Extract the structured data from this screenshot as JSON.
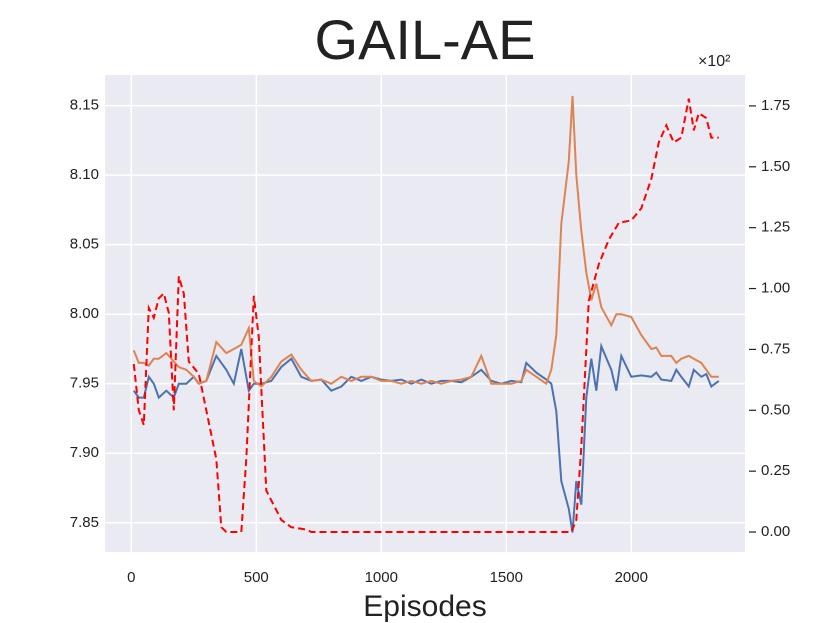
{
  "chart_data": {
    "type": "line",
    "title": "GAIL-AE",
    "x_label": "Episodes",
    "y2_offset_label": "×10²",
    "xlim": [
      -105,
      2455
    ],
    "xticks": [
      0,
      500,
      1000,
      1500,
      2000
    ],
    "ylim": [
      7.829,
      8.172
    ],
    "yticks": [
      7.85,
      {
        "value": 7.9,
        "label": "7.90"
      },
      7.95,
      {
        "value": 8.0,
        "label": "8.00"
      },
      8.05,
      {
        "value": 8.1,
        "label": "8.10"
      },
      8.15
    ],
    "y2lim": [
      -0.082,
      1.877
    ],
    "y2ticks": [
      {
        "value": 0,
        "label": "0.00"
      },
      {
        "value": 0.25,
        "label": "0.25"
      },
      {
        "value": 0.5,
        "label": "0.50"
      },
      {
        "value": 0.75,
        "label": "0.75"
      },
      {
        "value": 1,
        "label": "1.00"
      },
      {
        "value": 1.25,
        "label": "1.25"
      },
      {
        "value": 1.5,
        "label": "1.50"
      },
      {
        "value": 1.75,
        "label": "1.75"
      }
    ],
    "grid": true,
    "series": [
      {
        "color": "#4c72b0",
        "dashed": false,
        "x": [
          10,
          30,
          50,
          70,
          90,
          110,
          140,
          170,
          190,
          220,
          250,
          270,
          300,
          340,
          380,
          410,
          440,
          470,
          490,
          520,
          560,
          600,
          640,
          680,
          720,
          760,
          800,
          840,
          880,
          920,
          960,
          1000,
          1040,
          1080,
          1120,
          1160,
          1200,
          1240,
          1280,
          1320,
          1360,
          1400,
          1440,
          1480,
          1520,
          1560,
          1580,
          1620,
          1660,
          1680,
          1700,
          1720,
          1750,
          1765,
          1780,
          1800,
          1820,
          1840,
          1860,
          1880,
          1920,
          1940,
          1960,
          2000,
          2040,
          2080,
          2100,
          2120,
          2160,
          2180,
          2200,
          2230,
          2250,
          2280,
          2300,
          2320,
          2350
        ],
        "values": [
          7.945,
          7.94,
          7.94,
          7.955,
          7.95,
          7.94,
          7.945,
          7.94,
          7.95,
          7.95,
          7.955,
          7.95,
          7.952,
          7.97,
          7.96,
          7.95,
          7.975,
          7.945,
          7.95,
          7.95,
          7.952,
          7.962,
          7.968,
          7.955,
          7.952,
          7.953,
          7.945,
          7.948,
          7.955,
          7.952,
          7.955,
          7.953,
          7.952,
          7.953,
          7.95,
          7.953,
          7.95,
          7.952,
          7.952,
          7.951,
          7.955,
          7.96,
          7.952,
          7.95,
          7.952,
          7.951,
          7.965,
          7.958,
          7.953,
          7.95,
          7.93,
          7.88,
          7.86,
          7.843,
          7.88,
          7.863,
          7.94,
          7.968,
          7.945,
          7.977,
          7.96,
          7.945,
          7.97,
          7.955,
          7.956,
          7.955,
          7.958,
          7.953,
          7.952,
          7.96,
          7.955,
          7.948,
          7.96,
          7.955,
          7.957,
          7.948,
          7.952
        ]
      },
      {
        "color": "#dd8452",
        "dashed": false,
        "x": [
          10,
          30,
          50,
          70,
          90,
          110,
          140,
          170,
          190,
          220,
          250,
          270,
          300,
          340,
          380,
          410,
          440,
          470,
          490,
          520,
          560,
          600,
          640,
          680,
          720,
          760,
          800,
          840,
          880,
          920,
          960,
          1000,
          1040,
          1080,
          1120,
          1160,
          1200,
          1240,
          1280,
          1320,
          1360,
          1400,
          1440,
          1480,
          1520,
          1560,
          1580,
          1620,
          1660,
          1680,
          1700,
          1720,
          1750,
          1765,
          1780,
          1800,
          1820,
          1840,
          1860,
          1880,
          1920,
          1940,
          1960,
          2000,
          2040,
          2080,
          2100,
          2120,
          2160,
          2180,
          2200,
          2230,
          2250,
          2280,
          2300,
          2320,
          2350
        ],
        "values": [
          7.974,
          7.965,
          7.965,
          7.963,
          7.968,
          7.968,
          7.972,
          7.966,
          7.962,
          7.96,
          7.955,
          7.95,
          7.952,
          7.98,
          7.972,
          7.975,
          7.978,
          7.99,
          7.952,
          7.948,
          7.955,
          7.966,
          7.971,
          7.96,
          7.952,
          7.953,
          7.95,
          7.955,
          7.952,
          7.955,
          7.955,
          7.952,
          7.952,
          7.95,
          7.952,
          7.95,
          7.952,
          7.95,
          7.952,
          7.953,
          7.955,
          7.97,
          7.95,
          7.95,
          7.95,
          7.952,
          7.96,
          7.955,
          7.95,
          7.96,
          7.985,
          8.065,
          8.11,
          8.157,
          8.1,
          8.06,
          8.03,
          8.01,
          8.022,
          8.005,
          7.992,
          8.0,
          8.0,
          7.998,
          7.985,
          7.975,
          7.976,
          7.97,
          7.97,
          7.965,
          7.968,
          7.97,
          7.968,
          7.965,
          7.96,
          7.955,
          7.955
        ]
      },
      {
        "color": "#ff0000",
        "dashed": true,
        "axis": "y2",
        "x": [
          10,
          30,
          50,
          70,
          90,
          110,
          130,
          150,
          170,
          190,
          210,
          230,
          270,
          310,
          340,
          360,
          380,
          440,
          460,
          490,
          510,
          540,
          600,
          640,
          700,
          720,
          1760,
          1780,
          1800,
          1830,
          1870,
          1910,
          1950,
          2000,
          2040,
          2080,
          2110,
          2140,
          2170,
          2200,
          2230,
          2250,
          2270,
          2300,
          2320,
          2350
        ],
        "values": [
          0.69,
          0.5,
          0.44,
          0.92,
          0.88,
          0.96,
          0.98,
          0.9,
          0.5,
          1.05,
          0.98,
          0.7,
          0.65,
          0.45,
          0.3,
          0.02,
          0,
          0,
          0.3,
          0.97,
          0.8,
          0.17,
          0.05,
          0.02,
          0.01,
          0,
          0,
          0.05,
          0.35,
          0.95,
          1.1,
          1.2,
          1.27,
          1.28,
          1.33,
          1.45,
          1.6,
          1.67,
          1.6,
          1.62,
          1.78,
          1.65,
          1.72,
          1.7,
          1.62,
          1.62
        ]
      }
    ]
  }
}
